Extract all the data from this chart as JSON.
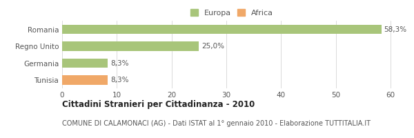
{
  "categories": [
    "Romania",
    "Regno Unito",
    "Germania",
    "Tunisia"
  ],
  "values": [
    58.3,
    25.0,
    8.3,
    8.3
  ],
  "labels": [
    "58,3%",
    "25,0%",
    "8,3%",
    "8,3%"
  ],
  "colors": [
    "#a8c57a",
    "#a8c57a",
    "#a8c57a",
    "#f0a868"
  ],
  "legend": [
    {
      "label": "Europa",
      "color": "#a8c57a"
    },
    {
      "label": "Africa",
      "color": "#f0a868"
    }
  ],
  "xlim": [
    0,
    62
  ],
  "xticks": [
    0,
    10,
    20,
    30,
    40,
    50,
    60
  ],
  "title": "Cittadini Stranieri per Cittadinanza - 2010",
  "subtitle": "COMUNE DI CALAMONACI (AG) - Dati ISTAT al 1° gennaio 2010 - Elaborazione TUTTITALIA.IT",
  "bg_color": "#ffffff",
  "bar_height": 0.55,
  "title_fontsize": 8.5,
  "subtitle_fontsize": 7.0,
  "label_fontsize": 7.5,
  "tick_fontsize": 7.5,
  "legend_fontsize": 8.0,
  "text_color": "#555555",
  "title_color": "#222222",
  "grid_color": "#cccccc"
}
